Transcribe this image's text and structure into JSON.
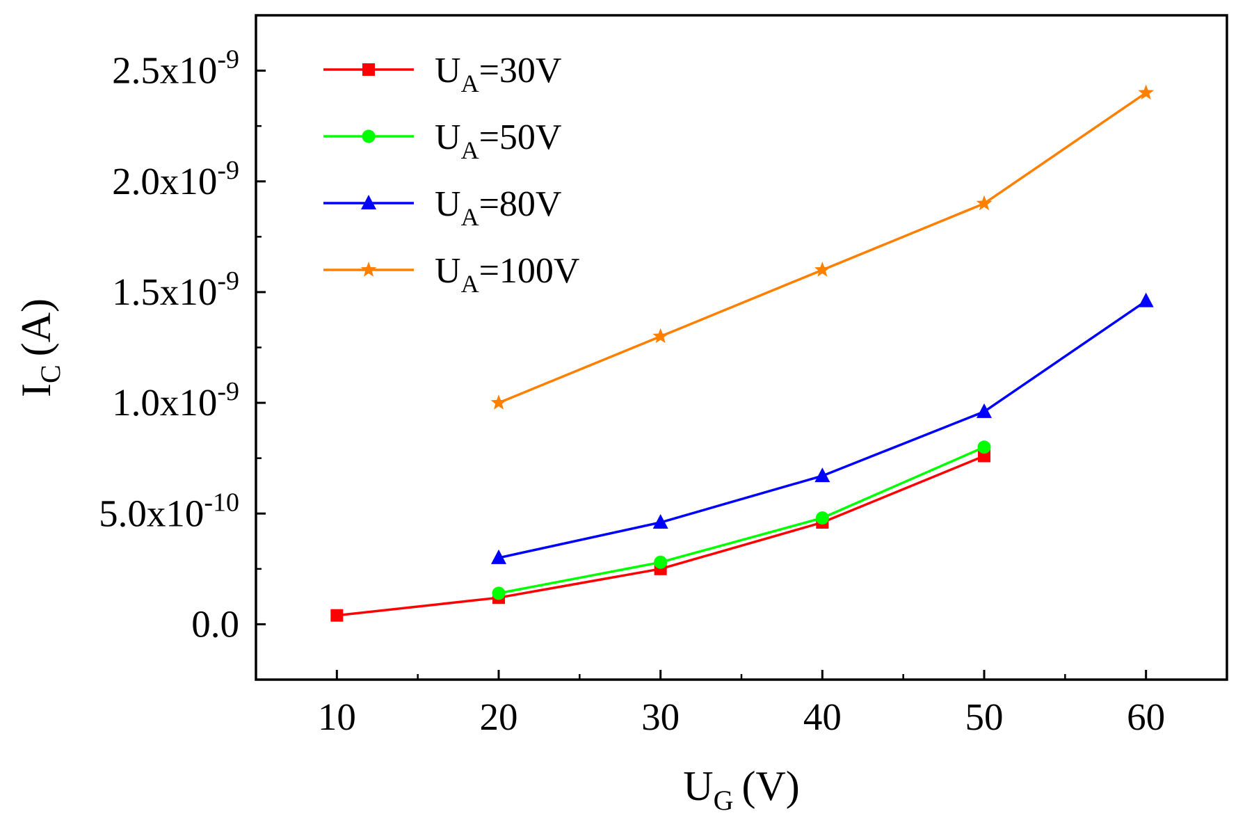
{
  "chart_data": {
    "type": "line",
    "title": "",
    "xlabel": {
      "main": "U",
      "sub": "G",
      "unit": "(V)"
    },
    "ylabel": {
      "main": "I",
      "sub": "C",
      "unit": "(A)"
    },
    "xlim": [
      5,
      65
    ],
    "ylim": [
      -2.5e-10,
      2.75e-09
    ],
    "x_ticks": [
      10,
      20,
      30,
      40,
      50,
      60
    ],
    "x_tick_labels": [
      "10",
      "20",
      "30",
      "40",
      "50",
      "60"
    ],
    "y_ticks": [
      0,
      5e-10,
      1e-09,
      1.5e-09,
      2e-09,
      2.5e-09
    ],
    "y_tick_labels": [
      {
        "base": "0.0",
        "exp": ""
      },
      {
        "base": "5.0x10",
        "exp": "-10"
      },
      {
        "base": "1.0x10",
        "exp": "-9"
      },
      {
        "base": "1.5x10",
        "exp": "-9"
      },
      {
        "base": "2.0x10",
        "exp": "-9"
      },
      {
        "base": "2.5x10",
        "exp": "-9"
      }
    ],
    "legend_position": "top-left",
    "grid": false,
    "series": [
      {
        "name": "U_A=30V",
        "label_main": "U",
        "label_sub": "A",
        "label_rest": "=30V",
        "color": "#ff0000",
        "marker": "square",
        "x": [
          10,
          20,
          30,
          40,
          50
        ],
        "values": [
          4e-11,
          1.2e-10,
          2.5e-10,
          4.6e-10,
          7.6e-10
        ]
      },
      {
        "name": "U_A=50V",
        "label_main": "U",
        "label_sub": "A",
        "label_rest": "=50V",
        "color": "#00ff00",
        "marker": "circle",
        "x": [
          20,
          30,
          40,
          50
        ],
        "values": [
          1.4e-10,
          2.8e-10,
          4.8e-10,
          8e-10
        ]
      },
      {
        "name": "U_A=80V",
        "label_main": "U",
        "label_sub": "A",
        "label_rest": "=80V",
        "color": "#0000ff",
        "marker": "triangle",
        "x": [
          20,
          30,
          40,
          50,
          60
        ],
        "values": [
          3e-10,
          4.6e-10,
          6.7e-10,
          9.6e-10,
          1.46e-09
        ]
      },
      {
        "name": "U_A=100V",
        "label_main": "U",
        "label_sub": "A",
        "label_rest": "=100V",
        "color": "#ff8000",
        "marker": "star",
        "x": [
          20,
          30,
          40,
          50,
          60
        ],
        "values": [
          1e-09,
          1.3e-09,
          1.6e-09,
          1.9e-09,
          2.4e-09
        ]
      }
    ]
  }
}
